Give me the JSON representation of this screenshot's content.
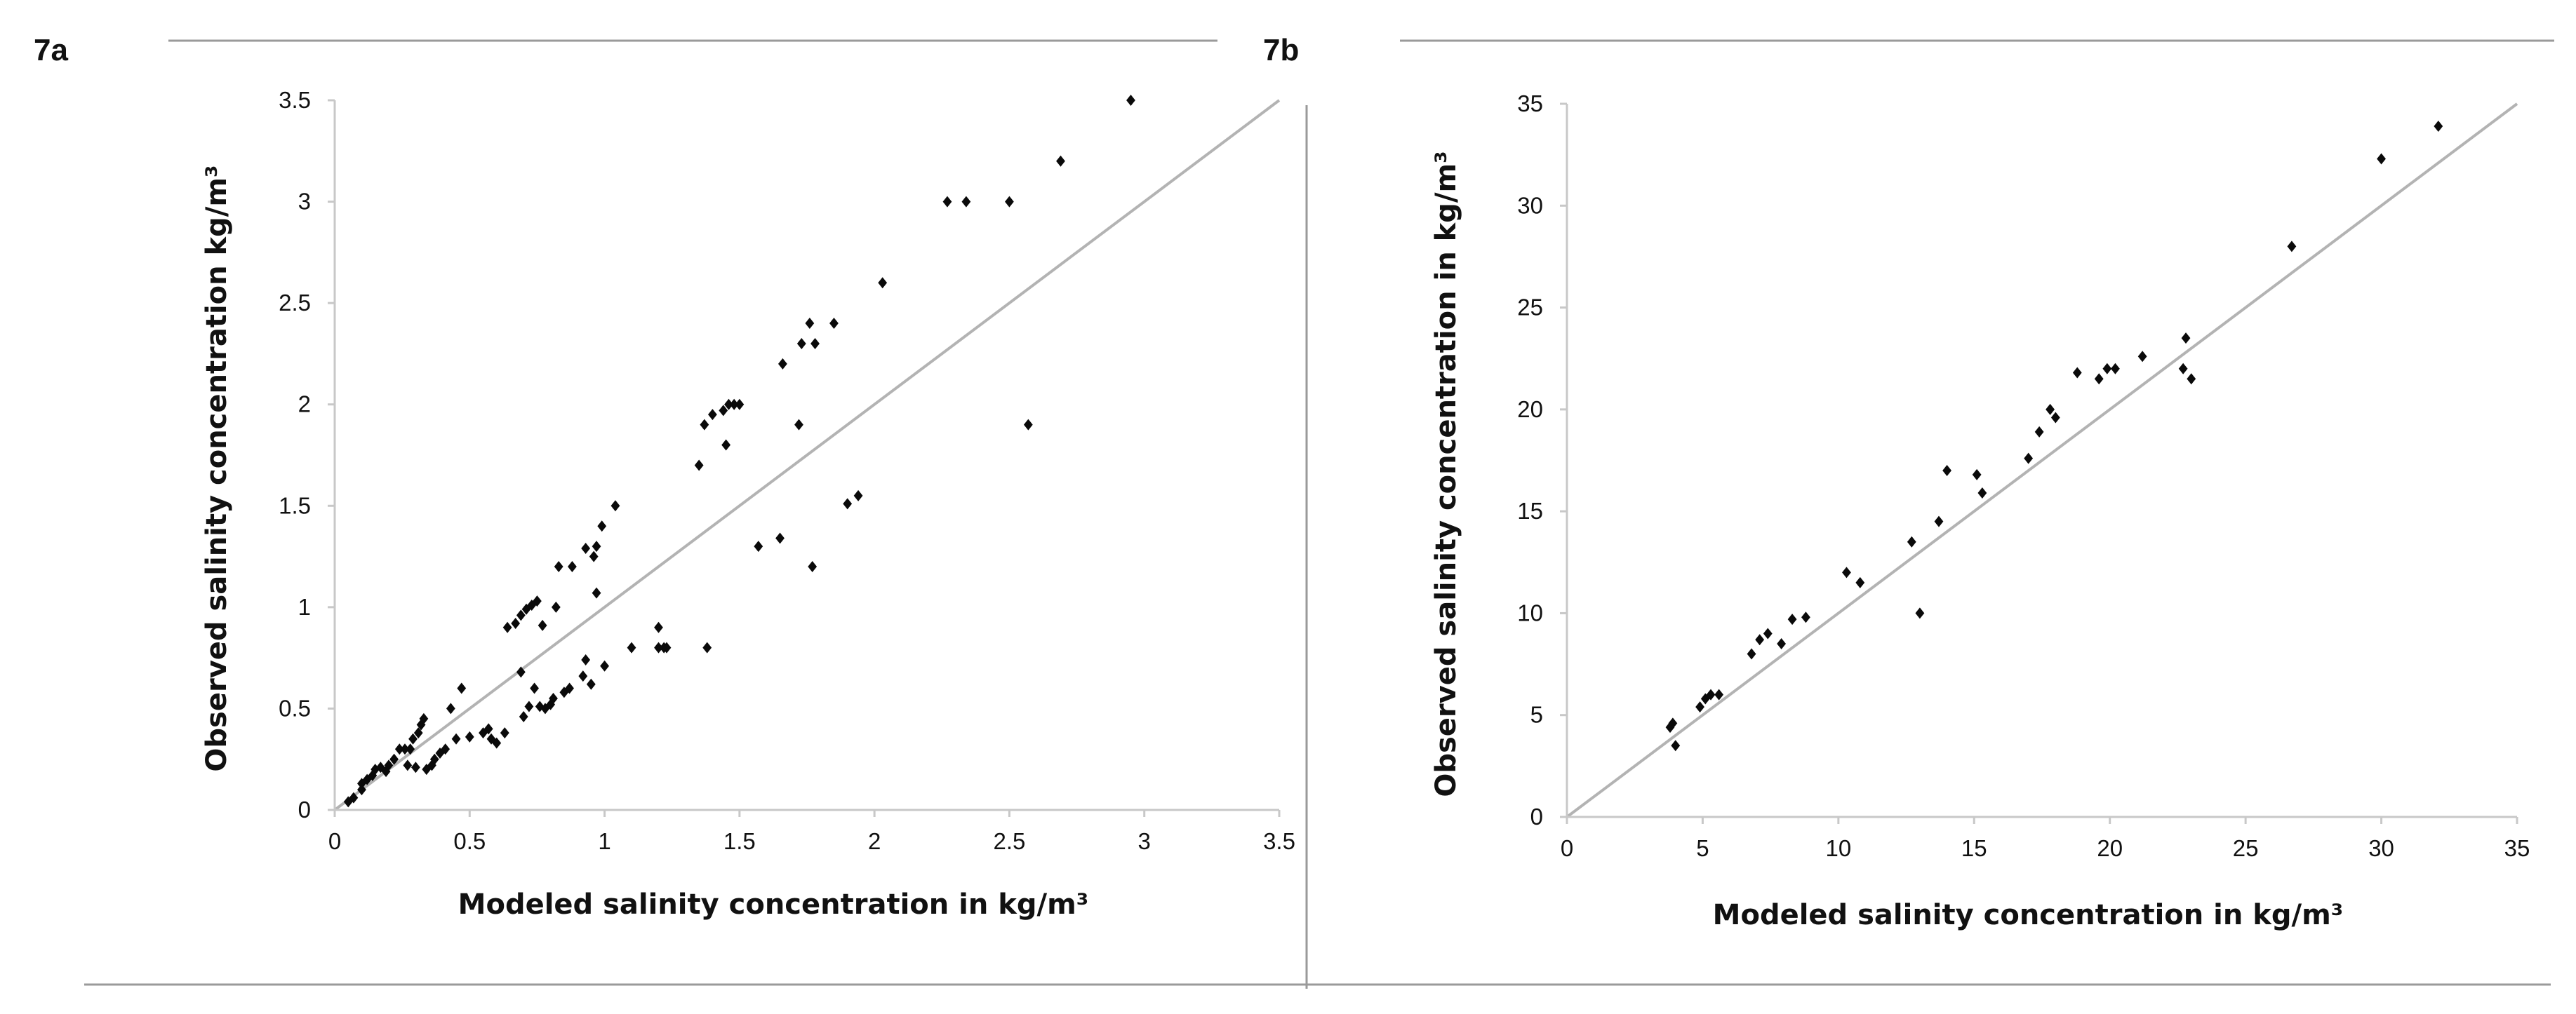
{
  "chart_data": [
    {
      "type": "scatter",
      "panel_label": "7a",
      "xlabel": "Modeled salinity concentration in kg/m³",
      "ylabel": "Observed salinity concentration kg/m³",
      "xlim": [
        0,
        3.5
      ],
      "ylim": [
        0,
        3.5
      ],
      "x_ticks": [
        "0",
        "0.5",
        "1",
        "1.5",
        "2",
        "2.5",
        "3",
        "3.5"
      ],
      "y_ticks": [
        "0",
        "0.5",
        "1",
        "1.5",
        "2",
        "2.5",
        "3",
        "3.5"
      ],
      "reference_line": {
        "from": [
          0,
          0
        ],
        "to": [
          3.5,
          3.5
        ]
      },
      "points": [
        [
          0.05,
          0.04
        ],
        [
          0.07,
          0.06
        ],
        [
          0.1,
          0.1
        ],
        [
          0.1,
          0.13
        ],
        [
          0.12,
          0.15
        ],
        [
          0.14,
          0.17
        ],
        [
          0.15,
          0.2
        ],
        [
          0.17,
          0.21
        ],
        [
          0.19,
          0.19
        ],
        [
          0.2,
          0.22
        ],
        [
          0.22,
          0.25
        ],
        [
          0.24,
          0.3
        ],
        [
          0.26,
          0.3
        ],
        [
          0.27,
          0.22
        ],
        [
          0.28,
          0.3
        ],
        [
          0.29,
          0.35
        ],
        [
          0.3,
          0.21
        ],
        [
          0.31,
          0.38
        ],
        [
          0.32,
          0.42
        ],
        [
          0.33,
          0.45
        ],
        [
          0.34,
          0.2
        ],
        [
          0.36,
          0.22
        ],
        [
          0.37,
          0.25
        ],
        [
          0.39,
          0.28
        ],
        [
          0.41,
          0.3
        ],
        [
          0.43,
          0.5
        ],
        [
          0.45,
          0.35
        ],
        [
          0.47,
          0.6
        ],
        [
          0.5,
          0.36
        ],
        [
          0.55,
          0.38
        ],
        [
          0.57,
          0.4
        ],
        [
          0.58,
          0.35
        ],
        [
          0.6,
          0.33
        ],
        [
          0.63,
          0.38
        ],
        [
          0.64,
          0.9
        ],
        [
          0.67,
          0.92
        ],
        [
          0.69,
          0.96
        ],
        [
          0.69,
          0.68
        ],
        [
          0.7,
          0.46
        ],
        [
          0.71,
          0.99
        ],
        [
          0.72,
          0.51
        ],
        [
          0.73,
          1.01
        ],
        [
          0.74,
          0.6
        ],
        [
          0.75,
          1.03
        ],
        [
          0.76,
          0.51
        ],
        [
          0.77,
          0.91
        ],
        [
          0.78,
          0.5
        ],
        [
          0.8,
          0.52
        ],
        [
          0.81,
          0.55
        ],
        [
          0.82,
          1.0
        ],
        [
          0.83,
          1.2
        ],
        [
          0.85,
          0.58
        ],
        [
          0.87,
          0.6
        ],
        [
          0.88,
          1.2
        ],
        [
          0.92,
          0.66
        ],
        [
          0.93,
          1.29
        ],
        [
          0.93,
          0.74
        ],
        [
          0.95,
          0.62
        ],
        [
          0.96,
          1.25
        ],
        [
          0.97,
          1.3
        ],
        [
          0.97,
          1.07
        ],
        [
          0.99,
          1.4
        ],
        [
          1.0,
          0.71
        ],
        [
          1.04,
          1.5
        ],
        [
          1.1,
          0.8
        ],
        [
          1.2,
          0.9
        ],
        [
          1.2,
          0.8
        ],
        [
          1.22,
          0.8
        ],
        [
          1.23,
          0.8
        ],
        [
          1.35,
          1.7
        ],
        [
          1.37,
          1.9
        ],
        [
          1.38,
          0.8
        ],
        [
          1.4,
          1.95
        ],
        [
          1.44,
          1.97
        ],
        [
          1.45,
          1.8
        ],
        [
          1.46,
          2.0
        ],
        [
          1.48,
          2.0
        ],
        [
          1.5,
          2.0
        ],
        [
          1.57,
          1.3
        ],
        [
          1.65,
          1.34
        ],
        [
          1.66,
          2.2
        ],
        [
          1.72,
          1.9
        ],
        [
          1.73,
          2.3
        ],
        [
          1.76,
          2.4
        ],
        [
          1.77,
          1.2
        ],
        [
          1.78,
          2.3
        ],
        [
          1.85,
          2.4
        ],
        [
          1.9,
          1.51
        ],
        [
          1.94,
          1.55
        ],
        [
          2.03,
          2.6
        ],
        [
          2.27,
          3.0
        ],
        [
          2.34,
          3.0
        ],
        [
          2.5,
          3.0
        ],
        [
          2.57,
          1.9
        ],
        [
          2.69,
          3.2
        ],
        [
          2.95,
          3.5
        ]
      ]
    },
    {
      "type": "scatter",
      "panel_label": "7b",
      "xlabel": "Modeled salinity concentration in kg/m³",
      "ylabel": "Observed salinity concentration in kg/m³",
      "xlim": [
        0,
        35
      ],
      "ylim": [
        0,
        35
      ],
      "x_ticks": [
        "0",
        "5",
        "10",
        "15",
        "20",
        "25",
        "30",
        "35"
      ],
      "y_ticks": [
        "0",
        "5",
        "10",
        "15",
        "20",
        "25",
        "30",
        "35"
      ],
      "reference_line": {
        "from": [
          0,
          0
        ],
        "to": [
          35,
          35
        ]
      },
      "points": [
        [
          3.8,
          4.4
        ],
        [
          3.9,
          4.6
        ],
        [
          4.0,
          3.5
        ],
        [
          4.9,
          5.4
        ],
        [
          5.1,
          5.8
        ],
        [
          5.3,
          6.0
        ],
        [
          5.6,
          6.0
        ],
        [
          6.8,
          8.0
        ],
        [
          7.1,
          8.7
        ],
        [
          7.4,
          9.0
        ],
        [
          7.9,
          8.5
        ],
        [
          8.3,
          9.7
        ],
        [
          8.8,
          9.8
        ],
        [
          10.3,
          12.0
        ],
        [
          10.8,
          11.5
        ],
        [
          12.7,
          13.5
        ],
        [
          13.0,
          10.0
        ],
        [
          13.7,
          14.5
        ],
        [
          14.0,
          17.0
        ],
        [
          15.1,
          16.8
        ],
        [
          15.3,
          15.9
        ],
        [
          17.0,
          17.6
        ],
        [
          17.4,
          18.9
        ],
        [
          17.8,
          20.0
        ],
        [
          18.0,
          19.6
        ],
        [
          18.8,
          21.8
        ],
        [
          19.6,
          21.5
        ],
        [
          19.9,
          22.0
        ],
        [
          20.2,
          22.0
        ],
        [
          21.2,
          22.6
        ],
        [
          22.7,
          22.0
        ],
        [
          22.8,
          23.5
        ],
        [
          23.0,
          21.5
        ],
        [
          26.7,
          28.0
        ],
        [
          30.0,
          32.3
        ],
        [
          32.1,
          33.9
        ]
      ]
    }
  ]
}
